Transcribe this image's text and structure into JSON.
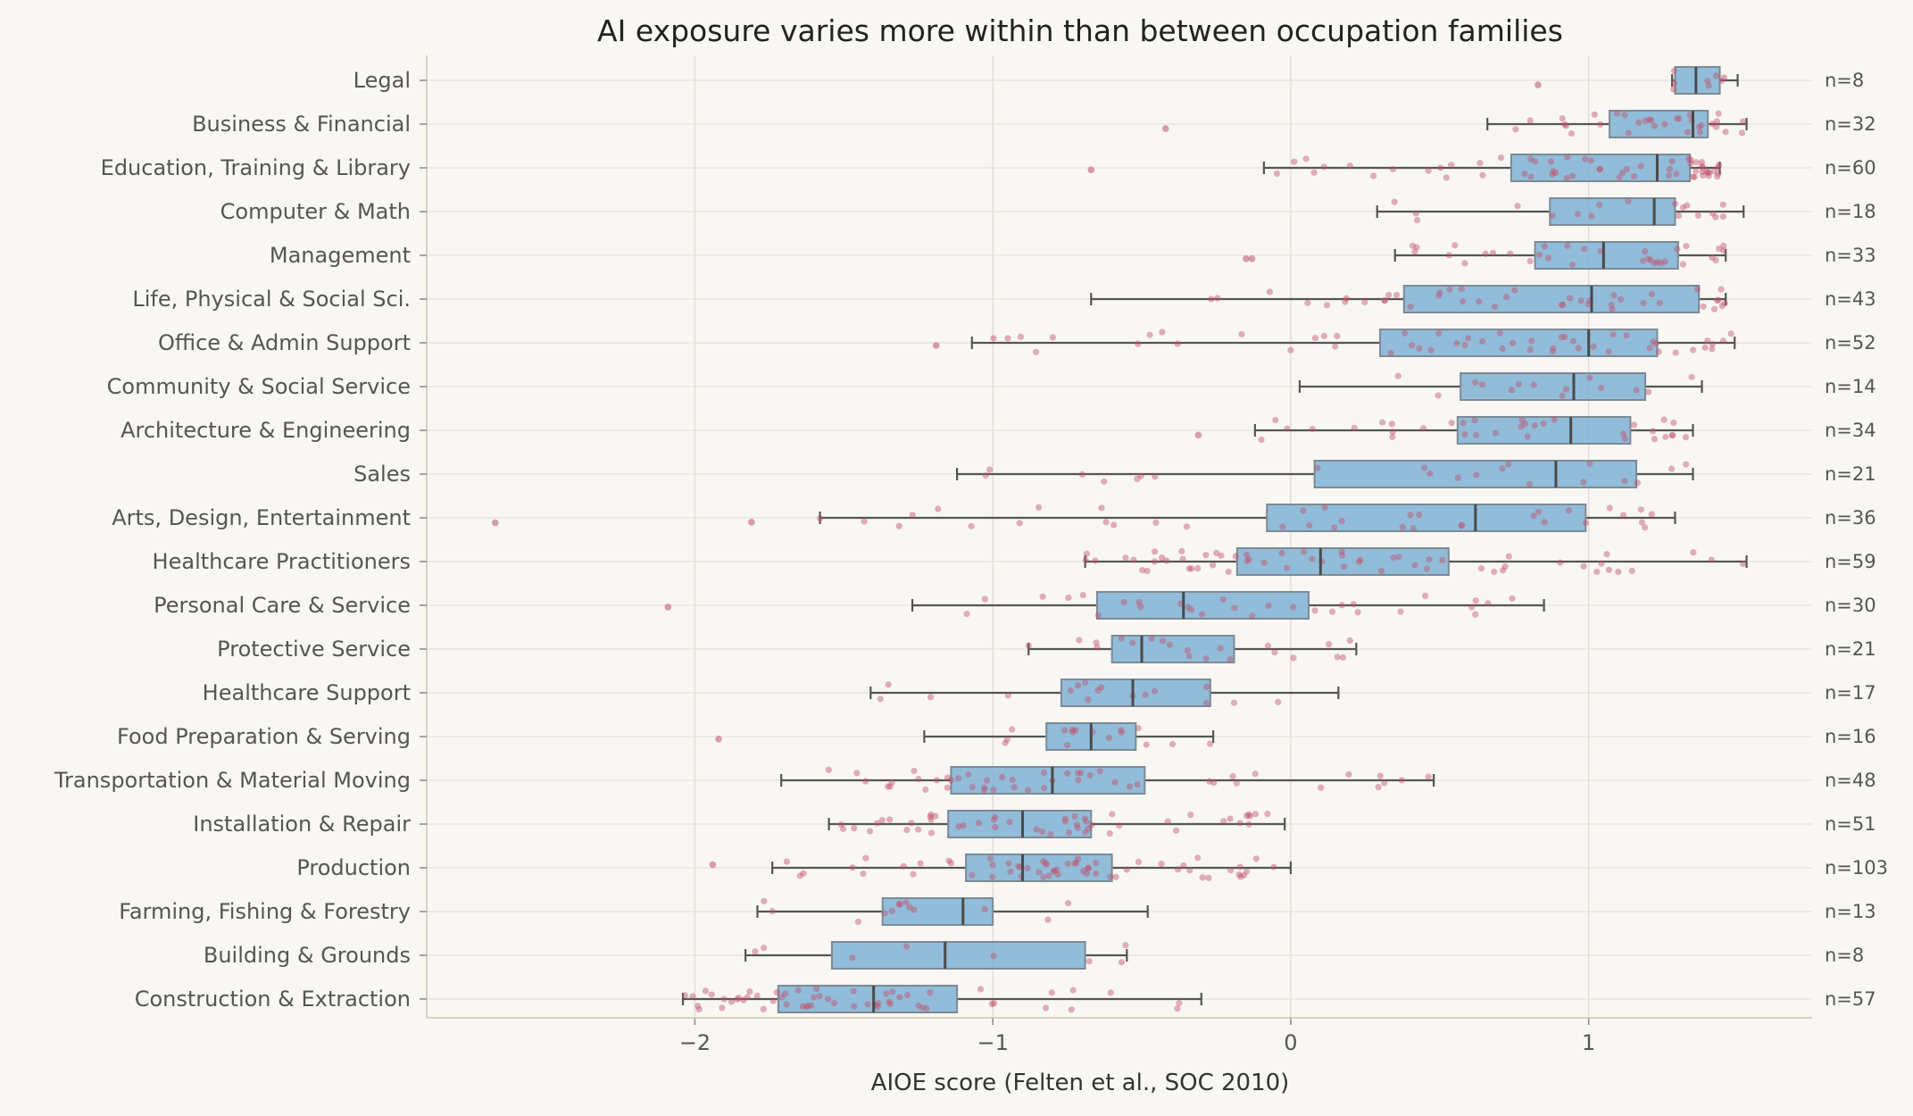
{
  "chart_data": {
    "type": "box",
    "title": "AI exposure varies more within than between occupation families",
    "xlabel": "AIOE score (Felten et al., SOC 2010)",
    "ylabel": "",
    "xlim": [
      -2.9,
      1.75
    ],
    "xticks": [
      {
        "value": -2,
        "label": "−2"
      },
      {
        "value": -1,
        "label": "−1"
      },
      {
        "value": 0,
        "label": "0"
      },
      {
        "value": 1,
        "label": "1"
      }
    ],
    "grid": "vertical and horizontal",
    "colors": {
      "box": "#7fb3d5",
      "points": "#c0506a",
      "median": "#4a4a4a",
      "background": "#f9f7f3"
    },
    "categories": [
      {
        "label": "Legal",
        "n": "n=8",
        "q1": 1.29,
        "median": 1.36,
        "q3": 1.44,
        "wlo": 1.28,
        "whi": 1.5,
        "outliers": [
          0.83
        ]
      },
      {
        "label": "Business & Financial",
        "n": "n=32",
        "q1": 1.07,
        "median": 1.35,
        "q3": 1.4,
        "wlo": 0.66,
        "whi": 1.53,
        "outliers": [
          -0.42
        ]
      },
      {
        "label": "Education, Training & Library",
        "n": "n=60",
        "q1": 0.74,
        "median": 1.23,
        "q3": 1.34,
        "wlo": -0.09,
        "whi": 1.44,
        "outliers": [
          -0.67
        ]
      },
      {
        "label": "Computer & Math",
        "n": "n=18",
        "q1": 0.87,
        "median": 1.22,
        "q3": 1.29,
        "wlo": 0.29,
        "whi": 1.52,
        "outliers": []
      },
      {
        "label": "Management",
        "n": "n=33",
        "q1": 0.82,
        "median": 1.05,
        "q3": 1.3,
        "wlo": 0.35,
        "whi": 1.46,
        "outliers": [
          -0.15,
          -0.13
        ]
      },
      {
        "label": "Life, Physical & Social Sci.",
        "n": "n=43",
        "q1": 0.38,
        "median": 1.01,
        "q3": 1.37,
        "wlo": -0.67,
        "whi": 1.46,
        "outliers": []
      },
      {
        "label": "Office & Admin Support",
        "n": "n=52",
        "q1": 0.3,
        "median": 1.0,
        "q3": 1.23,
        "wlo": -1.07,
        "whi": 1.49,
        "outliers": [
          -1.19
        ]
      },
      {
        "label": "Community & Social Service",
        "n": "n=14",
        "q1": 0.57,
        "median": 0.95,
        "q3": 1.19,
        "wlo": 0.03,
        "whi": 1.38,
        "outliers": []
      },
      {
        "label": "Architecture & Engineering",
        "n": "n=34",
        "q1": 0.56,
        "median": 0.94,
        "q3": 1.14,
        "wlo": -0.12,
        "whi": 1.35,
        "outliers": [
          -0.31
        ]
      },
      {
        "label": "Sales",
        "n": "n=21",
        "q1": 0.08,
        "median": 0.89,
        "q3": 1.16,
        "wlo": -1.12,
        "whi": 1.35,
        "outliers": []
      },
      {
        "label": "Arts, Design, Entertainment",
        "n": "n=36",
        "q1": -0.08,
        "median": 0.62,
        "q3": 0.99,
        "wlo": -1.58,
        "whi": 1.29,
        "outliers": [
          -2.67,
          -1.81
        ]
      },
      {
        "label": "Healthcare Practitioners",
        "n": "n=59",
        "q1": -0.18,
        "median": 0.1,
        "q3": 0.53,
        "wlo": -0.69,
        "whi": 1.53,
        "outliers": []
      },
      {
        "label": "Personal Care & Service",
        "n": "n=30",
        "q1": -0.65,
        "median": -0.36,
        "q3": 0.06,
        "wlo": -1.27,
        "whi": 0.85,
        "outliers": [
          -2.09
        ]
      },
      {
        "label": "Protective Service",
        "n": "n=21",
        "q1": -0.6,
        "median": -0.5,
        "q3": -0.19,
        "wlo": -0.88,
        "whi": 0.22,
        "outliers": []
      },
      {
        "label": "Healthcare Support",
        "n": "n=17",
        "q1": -0.77,
        "median": -0.53,
        "q3": -0.27,
        "wlo": -1.41,
        "whi": 0.16,
        "outliers": []
      },
      {
        "label": "Food Preparation & Serving",
        "n": "n=16",
        "q1": -0.82,
        "median": -0.67,
        "q3": -0.52,
        "wlo": -1.23,
        "whi": -0.26,
        "outliers": [
          -1.92
        ]
      },
      {
        "label": "Transportation & Material Moving",
        "n": "n=48",
        "q1": -1.14,
        "median": -0.8,
        "q3": -0.49,
        "wlo": -1.71,
        "whi": 0.48,
        "outliers": []
      },
      {
        "label": "Installation & Repair",
        "n": "n=51",
        "q1": -1.15,
        "median": -0.9,
        "q3": -0.67,
        "wlo": -1.55,
        "whi": -0.02,
        "outliers": []
      },
      {
        "label": "Production",
        "n": "n=103",
        "q1": -1.09,
        "median": -0.9,
        "q3": -0.6,
        "wlo": -1.74,
        "whi": 0.0,
        "outliers": [
          -1.94
        ]
      },
      {
        "label": "Farming, Fishing & Forestry",
        "n": "n=13",
        "q1": -1.37,
        "median": -1.1,
        "q3": -1.0,
        "wlo": -1.79,
        "whi": -0.48,
        "outliers": []
      },
      {
        "label": "Building & Grounds",
        "n": "n=8",
        "q1": -1.54,
        "median": -1.16,
        "q3": -0.69,
        "wlo": -1.83,
        "whi": -0.55,
        "outliers": []
      },
      {
        "label": "Construction & Extraction",
        "n": "n=57",
        "q1": -1.72,
        "median": -1.4,
        "q3": -1.12,
        "wlo": -2.04,
        "whi": -0.3,
        "outliers": []
      }
    ]
  }
}
